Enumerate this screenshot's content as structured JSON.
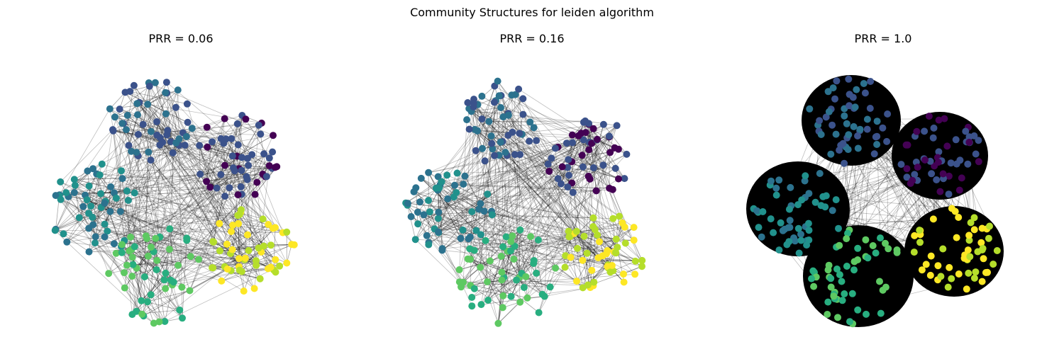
{
  "figure": {
    "title": "Community Structures for leiden algorithm",
    "panels": [
      {
        "title": "PRR = 0.06",
        "prr": 0.06
      },
      {
        "title": "PRR = 0.16",
        "prr": 0.16
      },
      {
        "title": "PRR = 1.0",
        "prr": 1.0
      }
    ]
  },
  "network": {
    "communities": 6,
    "colormap": "viridis",
    "community_colors": [
      "#440154",
      "#3b528b",
      "#2c728e",
      "#21918c",
      "#28ae80",
      "#5ec962",
      "#b5de2b",
      "#fde725"
    ],
    "edge_color": "#000000"
  }
}
